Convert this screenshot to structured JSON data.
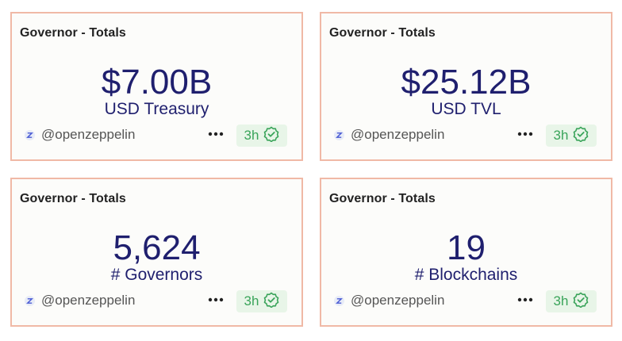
{
  "cards": [
    {
      "title": "Governor - Totals",
      "value": "$7.00B",
      "label": "USD Treasury",
      "author": "@openzeppelin",
      "freshness": "3h"
    },
    {
      "title": "Governor - Totals",
      "value": "$25.12B",
      "label": "USD TVL",
      "author": "@openzeppelin",
      "freshness": "3h"
    },
    {
      "title": "Governor - Totals",
      "value": "5,624",
      "label": "# Governors",
      "author": "@openzeppelin",
      "freshness": "3h"
    },
    {
      "title": "Governor - Totals",
      "value": "19",
      "label": "# Blockchains",
      "author": "@openzeppelin",
      "freshness": "3h"
    }
  ],
  "icons": {
    "avatar": "openzeppelin-avatar-icon",
    "more": "more-options-icon",
    "status": "verified-check-icon"
  },
  "colors": {
    "card_border": "#f0b9a6",
    "metric_text": "#1f1f6e",
    "badge_bg": "#e8f5e8",
    "badge_text": "#3aa45a"
  }
}
